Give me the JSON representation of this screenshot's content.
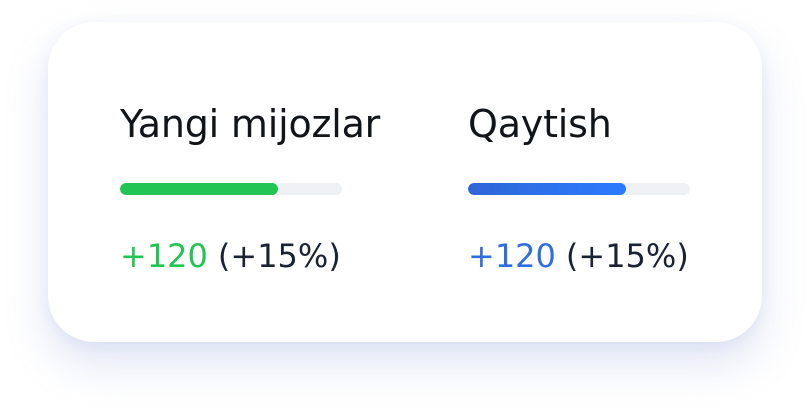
{
  "metrics": [
    {
      "title": "Yangi mijozlar",
      "progress": 0.71,
      "bar_colors": [
        "#22c453",
        "#22c453"
      ],
      "delta": "+120",
      "delta_color": "#22c453",
      "percent": "(+15%)"
    },
    {
      "title": "Qaytish",
      "progress": 0.71,
      "bar_colors": [
        "#2f66d6",
        "#2b7bff"
      ],
      "delta": "+120",
      "delta_color": "#2f6ee0",
      "percent": "(+15%)"
    }
  ]
}
